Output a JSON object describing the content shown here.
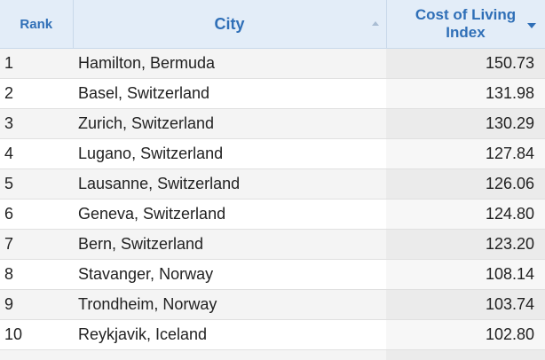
{
  "table": {
    "headers": [
      "Rank",
      "City",
      "Cost of Living Index"
    ],
    "rows": [
      [
        "1",
        "Hamilton, Bermuda",
        "150.73"
      ],
      [
        "2",
        "Basel, Switzerland",
        "131.98"
      ],
      [
        "3",
        "Zurich, Switzerland",
        "130.29"
      ],
      [
        "4",
        "Lugano, Switzerland",
        "127.84"
      ],
      [
        "5",
        "Lausanne, Switzerland",
        "126.06"
      ],
      [
        "6",
        "Geneva, Switzerland",
        "124.80"
      ],
      [
        "7",
        "Bern, Switzerland",
        "123.20"
      ],
      [
        "8",
        "Stavanger, Norway",
        "108.14"
      ],
      [
        "9",
        "Trondheim, Norway",
        "103.74"
      ],
      [
        "10",
        "Reykjavik, Iceland",
        "102.80"
      ]
    ]
  }
}
